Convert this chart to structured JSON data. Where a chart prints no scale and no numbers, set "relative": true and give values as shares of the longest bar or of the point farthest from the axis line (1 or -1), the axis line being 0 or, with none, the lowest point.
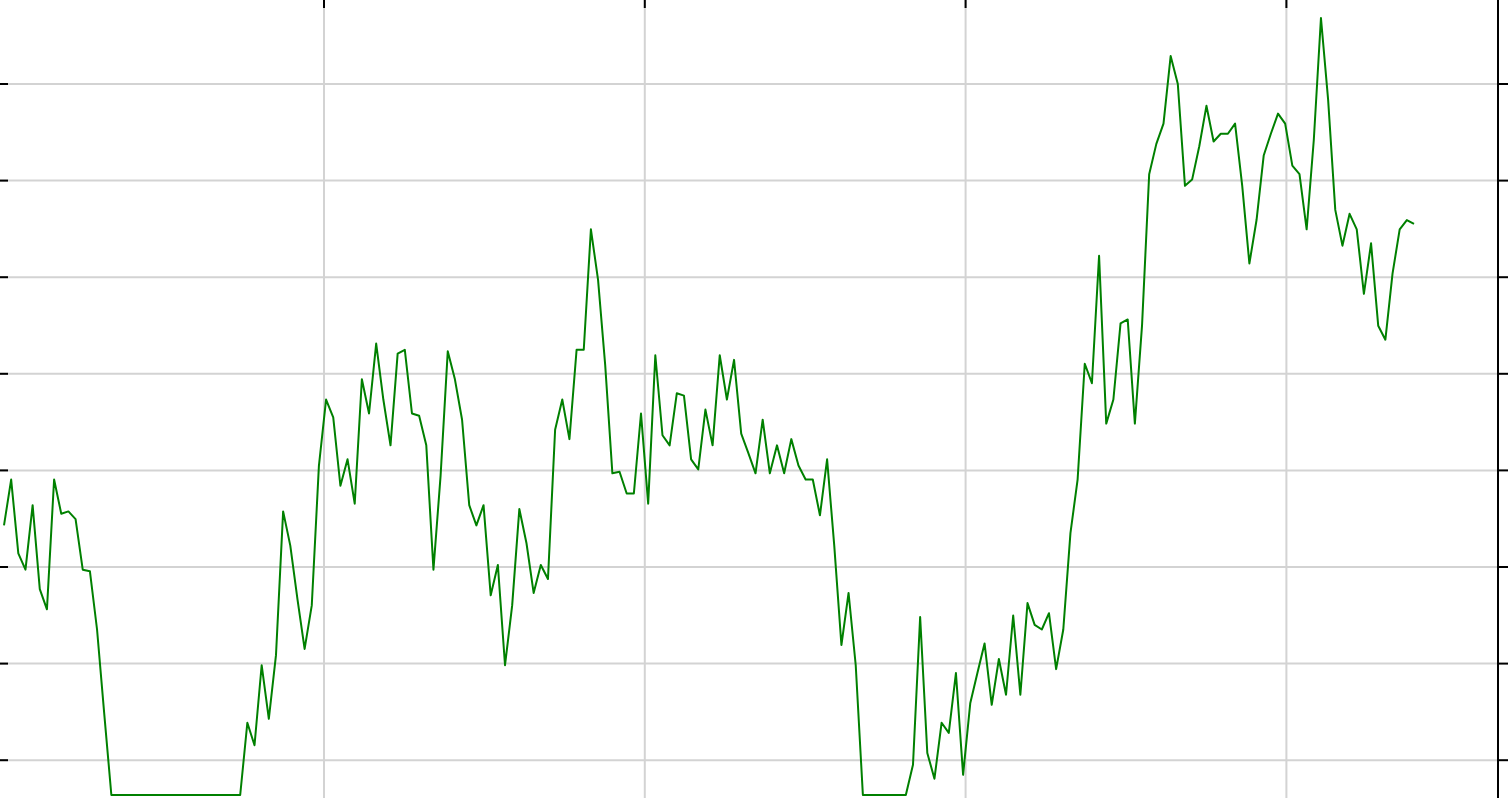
{
  "chart_data": {
    "type": "line",
    "relative": true,
    "grid": true,
    "marker": "none",
    "line_style": "solid",
    "categories": [
      null,
      null,
      null,
      null,
      null,
      null,
      null,
      null,
      null,
      null,
      null,
      null,
      null,
      null,
      null,
      null,
      null,
      null,
      null,
      null,
      null,
      null,
      null,
      null,
      null,
      null,
      null,
      null,
      null,
      null,
      null,
      null,
      null,
      null,
      null,
      null,
      null,
      null,
      null,
      null,
      null,
      null,
      null,
      null,
      null,
      null,
      null,
      null,
      null,
      null,
      null,
      null,
      null,
      null,
      null,
      null,
      null,
      null,
      null,
      null,
      null,
      null,
      null,
      null,
      null,
      null,
      null,
      null,
      null,
      null,
      null,
      null,
      null,
      null,
      null,
      null,
      null,
      null,
      null,
      null,
      null,
      null,
      null,
      null,
      null,
      null,
      null,
      null,
      null,
      null,
      null,
      null,
      null,
      null,
      null,
      null,
      null,
      null,
      null,
      null,
      null,
      null,
      null,
      null,
      null,
      null,
      null,
      null,
      null,
      null,
      null,
      null,
      null,
      null,
      null,
      null,
      null,
      null,
      null,
      null,
      null,
      null,
      null,
      null,
      null,
      null,
      null,
      null,
      null,
      null,
      null,
      null,
      null,
      null,
      null,
      null,
      null,
      null,
      null,
      null,
      null,
      null,
      null,
      null,
      null,
      null,
      null,
      null,
      null,
      null,
      null,
      null,
      null,
      null,
      null,
      null,
      null,
      null,
      null,
      null,
      null,
      null,
      null,
      null,
      null,
      null,
      null,
      null,
      null,
      null,
      null,
      null,
      null,
      null,
      null,
      null,
      null,
      null,
      null,
      null,
      null,
      null,
      null,
      null,
      null,
      null,
      null,
      null,
      null,
      null,
      null,
      null,
      null,
      null,
      null,
      null,
      null,
      null
    ],
    "series": [
      {
        "color": "#008000",
        "values": [
          0.347,
          0.406,
          0.311,
          0.29,
          0.373,
          0.265,
          0.239,
          0.406,
          0.362,
          0.365,
          0.355,
          0.29,
          0.288,
          0.213,
          0.105,
          0,
          0,
          0,
          0,
          0,
          0,
          0,
          0,
          0,
          0,
          0,
          0,
          0,
          0,
          0,
          0,
          0,
          0,
          0,
          0.093,
          0.064,
          0.167,
          0.098,
          0.18,
          0.365,
          0.321,
          0.252,
          0.188,
          0.244,
          0.424,
          0.509,
          0.486,
          0.398,
          0.432,
          0.375,
          0.535,
          0.491,
          0.581,
          0.509,
          0.45,
          0.568,
          0.573,
          0.491,
          0.488,
          0.45,
          0.29,
          0.411,
          0.571,
          0.535,
          0.483,
          0.373,
          0.347,
          0.373,
          0.257,
          0.296,
          0.167,
          0.244,
          0.368,
          0.324,
          0.26,
          0.296,
          0.278,
          0.47,
          0.509,
          0.458,
          0.573,
          0.573,
          0.728,
          0.663,
          0.553,
          0.414,
          0.416,
          0.388,
          0.388,
          0.491,
          0.375,
          0.566,
          0.463,
          0.45,
          0.517,
          0.514,
          0.432,
          0.419,
          0.496,
          0.45,
          0.566,
          0.509,
          0.56,
          0.465,
          0.44,
          0.414,
          0.483,
          0.414,
          0.45,
          0.414,
          0.458,
          0.424,
          0.406,
          0.406,
          0.36,
          0.432,
          0.321,
          0.193,
          0.26,
          0.167,
          0,
          0,
          0,
          0,
          0,
          0,
          0,
          0.039,
          0.229,
          0.054,
          0.021,
          0.093,
          0.08,
          0.157,
          0.026,
          0.118,
          0.157,
          0.195,
          0.116,
          0.175,
          0.129,
          0.231,
          0.129,
          0.247,
          0.219,
          0.213,
          0.234,
          0.162,
          0.213,
          0.337,
          0.406,
          0.555,
          0.53,
          0.694,
          0.478,
          0.509,
          0.607,
          0.612,
          0.478,
          0.604,
          0.799,
          0.838,
          0.864,
          0.951,
          0.915,
          0.784,
          0.792,
          0.835,
          0.887,
          0.841,
          0.851,
          0.851,
          0.864,
          0.784,
          0.684,
          0.74,
          0.823,
          0.851,
          0.877,
          0.864,
          0.81,
          0.799,
          0.728,
          0.843,
          1,
          0.895,
          0.753,
          0.707,
          0.748,
          0.728,
          0.645,
          0.71,
          0.604,
          0.586,
          0.671,
          0.728,
          0.74,
          0.735
        ]
      }
    ]
  }
}
